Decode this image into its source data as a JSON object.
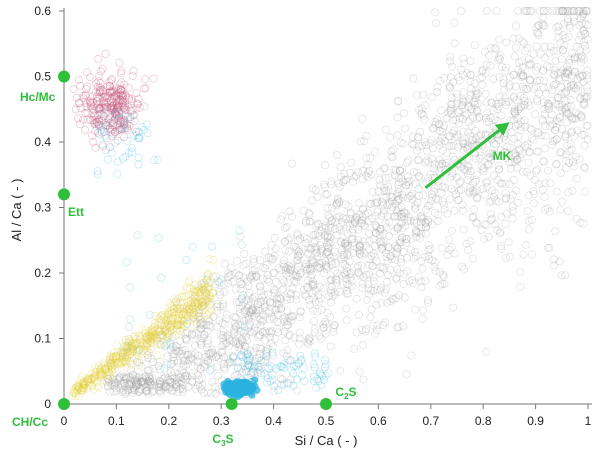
{
  "chart_data": {
    "type": "scatter",
    "title": "",
    "xlabel": "Si / Ca ( - )",
    "ylabel": "Al / Ca ( - )",
    "xlim": [
      0,
      1
    ],
    "ylim": [
      0,
      0.6
    ],
    "x_ticks": [
      "0",
      "0.1",
      "0.2",
      "0.3",
      "0.4",
      "0.5",
      "0.6",
      "0.7",
      "0.8",
      "0.9",
      "1"
    ],
    "y_ticks": [
      "0",
      "0.1",
      "0.2",
      "0.3",
      "0.4",
      "0.5",
      "0.6"
    ],
    "grid": false,
    "legend": "none",
    "clusters": [
      {
        "color": "#9a9a9a",
        "marker": "open-circle",
        "points": 2200,
        "x_range": [
          0.08,
          1.0
        ],
        "trend": "Al/Ca increases with Si/Ca from about 0.05 at Si/Ca 0.2 to about 0.5 at Si/Ca 1.0"
      },
      {
        "color": "#c0466b",
        "marker": "open-circle",
        "points": 260,
        "x_range": [
          0.02,
          0.17
        ],
        "y_range": [
          0.38,
          0.53
        ]
      },
      {
        "color": "#e3cc30",
        "marker": "open-circle",
        "points": 500,
        "x_range": [
          0.01,
          0.29
        ],
        "y_range": [
          0.01,
          0.18
        ]
      },
      {
        "color": "#2bb3e0",
        "marker": "filled-circle",
        "points": 300,
        "x_range": [
          0.3,
          0.37
        ],
        "y_range": [
          0.015,
          0.035
        ]
      },
      {
        "color": "#2bb3e0",
        "marker": "open-circle",
        "points": 160,
        "x_range": [
          0.05,
          0.5
        ],
        "y_range": [
          0.0,
          0.44
        ]
      }
    ],
    "reference_points": [
      {
        "label": "Hc/Mc",
        "x": 0.0,
        "y": 0.5
      },
      {
        "label": "Ett",
        "x": 0.0,
        "y": 0.32
      },
      {
        "label": "CH/Cc",
        "x": 0.0,
        "y": 0.0
      },
      {
        "label": "C",
        "subscript": "3",
        "suffix": "S",
        "x": 0.32,
        "y": 0.0
      },
      {
        "label": "C",
        "subscript": "2",
        "suffix": "S",
        "x": 0.5,
        "y": 0.0
      }
    ],
    "annotations": [
      {
        "text": "MK",
        "arrow_from": [
          0.69,
          0.33
        ],
        "arrow_to": [
          0.85,
          0.43
        ]
      }
    ],
    "colors": {
      "reference": "#2fbf3a",
      "axis": "#777777",
      "text": "#222222"
    }
  }
}
